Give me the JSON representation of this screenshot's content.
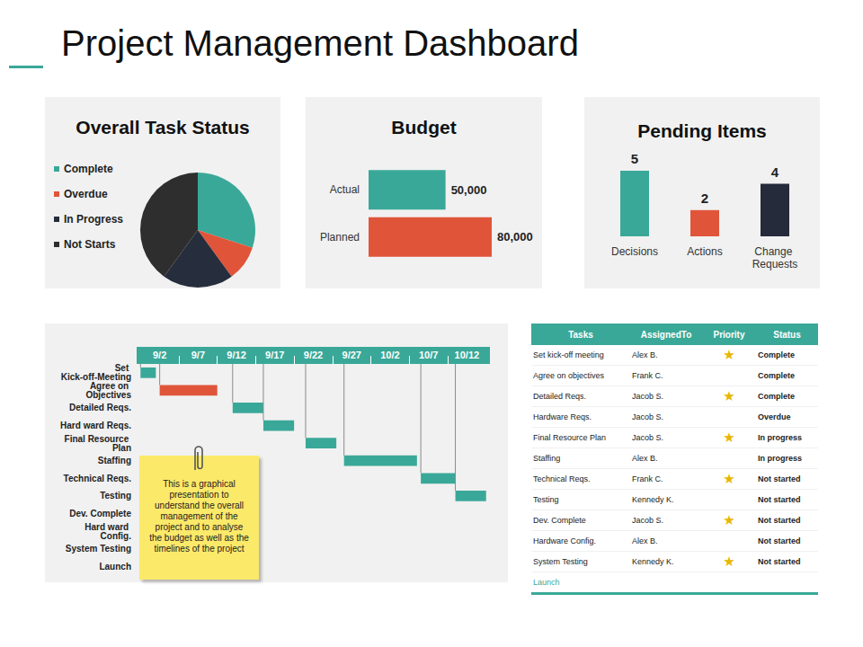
{
  "title": "Project Management Dashboard",
  "chart_data": [
    {
      "type": "pie",
      "title": "Overall Task Status",
      "categories": [
        "Complete",
        "Overdue",
        "In Progress",
        "Not Starts"
      ],
      "values": [
        30,
        10,
        20,
        40
      ],
      "colors": [
        "#3aa898",
        "#e0553a",
        "#262d3d",
        "#2e2e2e"
      ],
      "legend": "left"
    },
    {
      "type": "bar",
      "title": "Budget",
      "orientation": "horizontal",
      "categories": [
        "Actual",
        "Planned"
      ],
      "values": [
        50000,
        80000
      ],
      "value_labels": [
        "50,000",
        "80,000"
      ],
      "colors": [
        "#3aa898",
        "#e0553a"
      ],
      "xlim": [
        0,
        80000
      ],
      "data_labels": true,
      "tick_labels": "y"
    },
    {
      "type": "bar",
      "title": "Pending Items",
      "categories": [
        "Decisions",
        "Actions",
        "Change Requests"
      ],
      "values": [
        5,
        2,
        4
      ],
      "colors": [
        "#3aa898",
        "#e0553a",
        "#252b3b"
      ],
      "ylim": [
        0,
        5
      ],
      "data_labels": true,
      "tick_labels": "x"
    },
    {
      "type": "gantt",
      "categories": [
        "Set Kick-off-Meeting",
        "Agree on Objectives",
        "Detailed Reqs.",
        "Hard ward Reqs.",
        "Final Resource Plan",
        "Staffing",
        "Technical Reqs.",
        "Testing",
        "Dev. Complete",
        "Hard ward Config.",
        "System Testing",
        "Launch"
      ],
      "start": [
        242.5,
        245,
        254.5,
        258.5,
        264,
        269,
        279,
        283.5,
        null,
        null,
        null,
        null
      ],
      "end": [
        244.5,
        252.5,
        258.5,
        262.5,
        268,
        278.5,
        283.5,
        287.5,
        null,
        null,
        null,
        null
      ],
      "colors": [
        "#3aa898",
        "#e0553a",
        "#3aa898",
        "#3aa898",
        "#3aa898",
        "#3aa898",
        "#3aa898",
        "#3aa898",
        null,
        null,
        null,
        null
      ],
      "xlim": [
        242,
        288
      ],
      "xticks": [
        {
          "value": 245,
          "label": "9/2"
        },
        {
          "value": 250,
          "label": "9/7"
        },
        {
          "value": 255,
          "label": "9/12"
        },
        {
          "value": 260,
          "label": "9/17"
        },
        {
          "value": 265,
          "label": "9/22"
        },
        {
          "value": 270,
          "label": "9/27"
        },
        {
          "value": 275,
          "label": "10/2"
        },
        {
          "value": 280,
          "label": "10/7"
        },
        {
          "value": 285,
          "label": "10/12"
        }
      ]
    }
  ],
  "note": "This is a graphical presentation to understand the overall management  of the project and to analyse the budget as well as the timelines of the project",
  "table": {
    "header": [
      "Tasks",
      "AssignedTo",
      "Priority",
      "Status"
    ],
    "rows": [
      [
        "Set kick-off meeting",
        "Alex B.",
        "★",
        "Complete"
      ],
      [
        "Agree on objectives",
        "Frank C.",
        null,
        "Complete"
      ],
      [
        "Detailed Reqs.",
        "Jacob S.",
        "★",
        "Complete"
      ],
      [
        "Hardware Reqs.",
        "Jacob S.",
        null,
        "Overdue"
      ],
      [
        "Final Resource Plan",
        "Jacob S.",
        "★",
        "In progress"
      ],
      [
        "Staffing",
        "Alex B.",
        null,
        "In progress"
      ],
      [
        "Technical Reqs.",
        "Frank C.",
        "★",
        "Not started"
      ],
      [
        "Testing",
        "Kennedy K.",
        null,
        "Not started"
      ],
      [
        "Dev. Complete",
        "Jacob S.",
        "★",
        "Not started"
      ],
      [
        "Hardware Config.",
        "Alex B.",
        null,
        "Not started"
      ],
      [
        "System Testing",
        "Kennedy K.",
        "★",
        "Not started"
      ],
      [
        "Launch",
        null,
        null,
        null
      ]
    ]
  }
}
